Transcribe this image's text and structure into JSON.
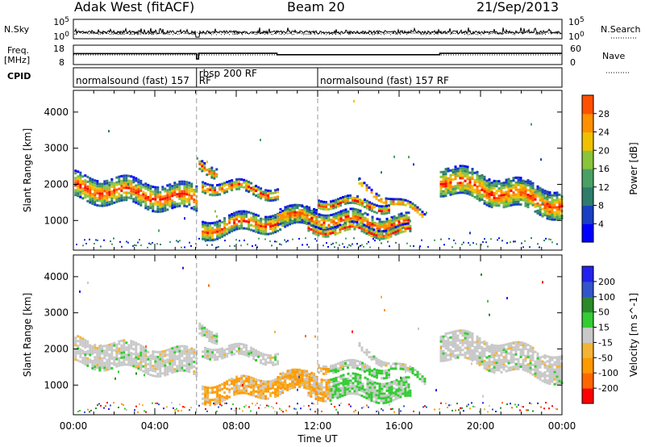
{
  "header": {
    "radar": "Adak West (fitACF)",
    "beam": "Beam 20",
    "date": "21/Sep/2013"
  },
  "side_labels": {
    "nsky": "N.Sky",
    "nsearch": "N.Search",
    "freq": "Freq.",
    "freq_unit": "[MHz]",
    "nave": "Nave",
    "cpid": "CPID"
  },
  "cpid_segments": [
    {
      "label": "normalsound (fast) 157",
      "start_hour": 0.0
    },
    {
      "label": "rbsp 200 RF",
      "start_hour": 6.05
    },
    {
      "label": "RF",
      "start_hour": 6.05
    },
    {
      "label": "normalsound (fast) 157 RF",
      "start_hour": 12.0
    }
  ],
  "colors": {
    "power": [
      "#0000ff",
      "#1a3fc4",
      "#2e7d6c",
      "#4aa064",
      "#8ac43a",
      "#f0c000",
      "#ff9000",
      "#ff5000",
      "#ff0000"
    ],
    "velocity": [
      "#ff0000",
      "#ff6600",
      "#ff9900",
      "#f3b436",
      "#c8c8c8",
      "#33cc33",
      "#2a8a2a",
      "#3355cc",
      "#2222ee"
    ]
  },
  "chart_data": [
    {
      "type": "line",
      "name": "noise-panel",
      "ylabel": "N.Sky",
      "ytick_labels": [
        "10^0",
        "10^5"
      ],
      "y2label": "N.Search",
      "y2tick_labels": [
        "10^0",
        "10^5"
      ],
      "x_range_hours": [
        0,
        24
      ]
    },
    {
      "type": "line",
      "name": "frequency-nave-panel",
      "ylabel": "Freq. [MHz]",
      "yticks": [
        8,
        18
      ],
      "y2label": "Nave",
      "y2ticks": [
        0,
        60
      ],
      "series": [
        {
          "name": "Freq.",
          "points": [
            [
              0,
              13.2
            ],
            [
              6.05,
              13.2
            ],
            [
              6.05,
              9.0
            ],
            [
              6.15,
              9.0
            ],
            [
              6.15,
              13.4
            ],
            [
              10.0,
              13.4
            ],
            [
              10.0,
              12.3
            ],
            [
              18.0,
              12.3
            ],
            [
              18.0,
              13.4
            ],
            [
              24,
              13.4
            ]
          ]
        },
        {
          "name": "Nave",
          "points": [
            [
              0,
              32
            ],
            [
              6.05,
              32
            ],
            [
              6.15,
              32
            ],
            [
              10.0,
              32
            ],
            [
              24,
              32
            ]
          ]
        }
      ],
      "x_range_hours": [
        0,
        24
      ]
    },
    {
      "type": "heatmap",
      "name": "power-panel",
      "ylabel": "Slant Range [km]",
      "yticks": [
        1000,
        2000,
        3000,
        4000
      ],
      "ylim": [
        180,
        4600
      ],
      "xlim": [
        0,
        24
      ],
      "colorbar_label": "Power [dB]",
      "colorbar_ticks": [
        4,
        8,
        12,
        16,
        20,
        24,
        28
      ],
      "colorbar_range": [
        0,
        32
      ],
      "vertical_markers_hours": [
        6.05,
        12.0
      ]
    },
    {
      "type": "heatmap",
      "name": "velocity-panel",
      "ylabel": "Slant Range [km]",
      "yticks": [
        1000,
        2000,
        3000,
        4000
      ],
      "ylim": [
        180,
        4600
      ],
      "xlim": [
        0,
        24
      ],
      "xticks": [
        "00:00",
        "04:00",
        "08:00",
        "12:00",
        "16:00",
        "20:00",
        "00:00"
      ],
      "xlabel": "Time UT",
      "colorbar_label": "Velocity [m s^-1]",
      "colorbar_ticks": [
        -200,
        -100,
        -50,
        -15,
        15,
        50,
        100,
        200
      ],
      "vertical_markers_hours": [
        6.05,
        12.0
      ]
    }
  ]
}
